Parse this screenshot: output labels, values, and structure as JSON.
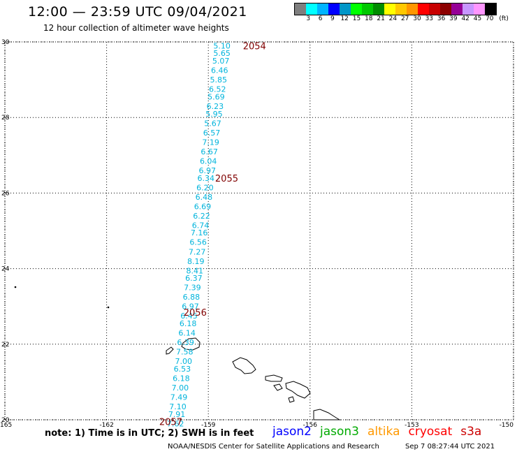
{
  "header": {
    "title": "12:00 — 23:59 UTC 09/04/2021",
    "subtitle": "12 hour collection of altimeter wave heights"
  },
  "color_scale": {
    "colors": [
      "#7f7f7f",
      "#00ffff",
      "#00b4ff",
      "#0000ff",
      "#0096c8",
      "#00ff00",
      "#00c800",
      "#008c00",
      "#ffff00",
      "#ffc800",
      "#ff9600",
      "#ff0000",
      "#c80000",
      "#8c0000",
      "#960096",
      "#c896ff",
      "#ff96ff",
      "#000000"
    ],
    "labels": [
      "3",
      "6",
      "9",
      "12",
      "15",
      "18",
      "21",
      "24",
      "27",
      "30",
      "33",
      "36",
      "39",
      "42",
      "45",
      "70"
    ],
    "unit": "(ft)"
  },
  "map": {
    "lon_range": [
      -165,
      -150
    ],
    "lat_range": [
      20,
      30
    ],
    "lon_ticks": [
      "-165",
      "-162",
      "-159",
      "-156",
      "-153",
      "-150"
    ],
    "lat_ticks": [
      "30",
      "28",
      "26",
      "24",
      "22",
      "20"
    ],
    "track_color": "#00b4dc",
    "pass_color": "#800000",
    "measurements": [
      {
        "lon": -158.6,
        "lat": 29.9,
        "swh": "5.10"
      },
      {
        "lon": -158.6,
        "lat": 29.7,
        "swh": "5.65"
      },
      {
        "lon": -158.63,
        "lat": 29.5,
        "swh": "5.07"
      },
      {
        "lon": -158.67,
        "lat": 29.25,
        "swh": "6.46"
      },
      {
        "lon": -158.7,
        "lat": 29.0,
        "swh": "5.85"
      },
      {
        "lon": -158.73,
        "lat": 28.75,
        "swh": "6.52"
      },
      {
        "lon": -158.77,
        "lat": 28.55,
        "swh": "5.69"
      },
      {
        "lon": -158.8,
        "lat": 28.3,
        "swh": "6.23"
      },
      {
        "lon": -158.83,
        "lat": 28.1,
        "swh": "5.95"
      },
      {
        "lon": -158.87,
        "lat": 27.85,
        "swh": "5.67"
      },
      {
        "lon": -158.9,
        "lat": 27.6,
        "swh": "6.57"
      },
      {
        "lon": -158.93,
        "lat": 27.35,
        "swh": "7.19"
      },
      {
        "lon": -158.97,
        "lat": 27.1,
        "swh": "6.67"
      },
      {
        "lon": -159.0,
        "lat": 26.85,
        "swh": "6.04"
      },
      {
        "lon": -159.03,
        "lat": 26.6,
        "swh": "6.97"
      },
      {
        "lon": -159.07,
        "lat": 26.4,
        "swh": "6.34"
      },
      {
        "lon": -159.1,
        "lat": 26.15,
        "swh": "6.20"
      },
      {
        "lon": -159.13,
        "lat": 25.9,
        "swh": "6.48"
      },
      {
        "lon": -159.17,
        "lat": 25.65,
        "swh": "6.69"
      },
      {
        "lon": -159.2,
        "lat": 25.4,
        "swh": "6.22"
      },
      {
        "lon": -159.23,
        "lat": 25.15,
        "swh": "6.74"
      },
      {
        "lon": -159.27,
        "lat": 24.95,
        "swh": "7.16"
      },
      {
        "lon": -159.3,
        "lat": 24.7,
        "swh": "6.56"
      },
      {
        "lon": -159.33,
        "lat": 24.45,
        "swh": "7.27"
      },
      {
        "lon": -159.37,
        "lat": 24.2,
        "swh": "8.19"
      },
      {
        "lon": -159.4,
        "lat": 23.95,
        "swh": "8.41"
      },
      {
        "lon": -159.43,
        "lat": 23.75,
        "swh": "6.37"
      },
      {
        "lon": -159.47,
        "lat": 23.5,
        "swh": "7.39"
      },
      {
        "lon": -159.5,
        "lat": 23.25,
        "swh": "6.88"
      },
      {
        "lon": -159.53,
        "lat": 23.0,
        "swh": "6.97"
      },
      {
        "lon": -159.57,
        "lat": 22.75,
        "swh": "6.45"
      },
      {
        "lon": -159.6,
        "lat": 22.55,
        "swh": "6.18"
      },
      {
        "lon": -159.63,
        "lat": 22.3,
        "swh": "6.14"
      },
      {
        "lon": -159.67,
        "lat": 22.05,
        "swh": "6.39"
      },
      {
        "lon": -159.7,
        "lat": 21.8,
        "swh": "7.58"
      },
      {
        "lon": -159.73,
        "lat": 21.55,
        "swh": "7.00"
      },
      {
        "lon": -159.77,
        "lat": 21.35,
        "swh": "6.53"
      },
      {
        "lon": -159.8,
        "lat": 21.1,
        "swh": "6.18"
      },
      {
        "lon": -159.83,
        "lat": 20.85,
        "swh": "7.00"
      },
      {
        "lon": -159.87,
        "lat": 20.6,
        "swh": "7.49"
      },
      {
        "lon": -159.9,
        "lat": 20.35,
        "swh": "7.10"
      },
      {
        "lon": -159.93,
        "lat": 20.15,
        "swh": "7.91"
      },
      {
        "lon": -159.97,
        "lat": 19.9,
        "swh": "7.62"
      }
    ],
    "passes": [
      {
        "lon": -157.98,
        "lat": 29.9,
        "label": "2054"
      },
      {
        "lon": -158.8,
        "lat": 26.4,
        "label": "2055"
      },
      {
        "lon": -159.73,
        "lat": 22.85,
        "label": "2056"
      },
      {
        "lon": -160.45,
        "lat": 19.95,
        "label": "2057"
      }
    ]
  },
  "footer": {
    "note": "note: 1) Time is in UTC; 2) SWH is in feet",
    "satellites": [
      {
        "name": "jason2",
        "color": "#0000ff"
      },
      {
        "name": "jason3",
        "color": "#00aa00"
      },
      {
        "name": "altika",
        "color": "#ff9900"
      },
      {
        "name": "cryosat",
        "color": "#ff0000"
      },
      {
        "name": "s3a",
        "color": "#cc0000"
      }
    ],
    "credit": "NOAA/NESDIS Center for Satellite Applications and Research",
    "timestamp": "Sep  7 08:27:44 UTC 2021"
  }
}
